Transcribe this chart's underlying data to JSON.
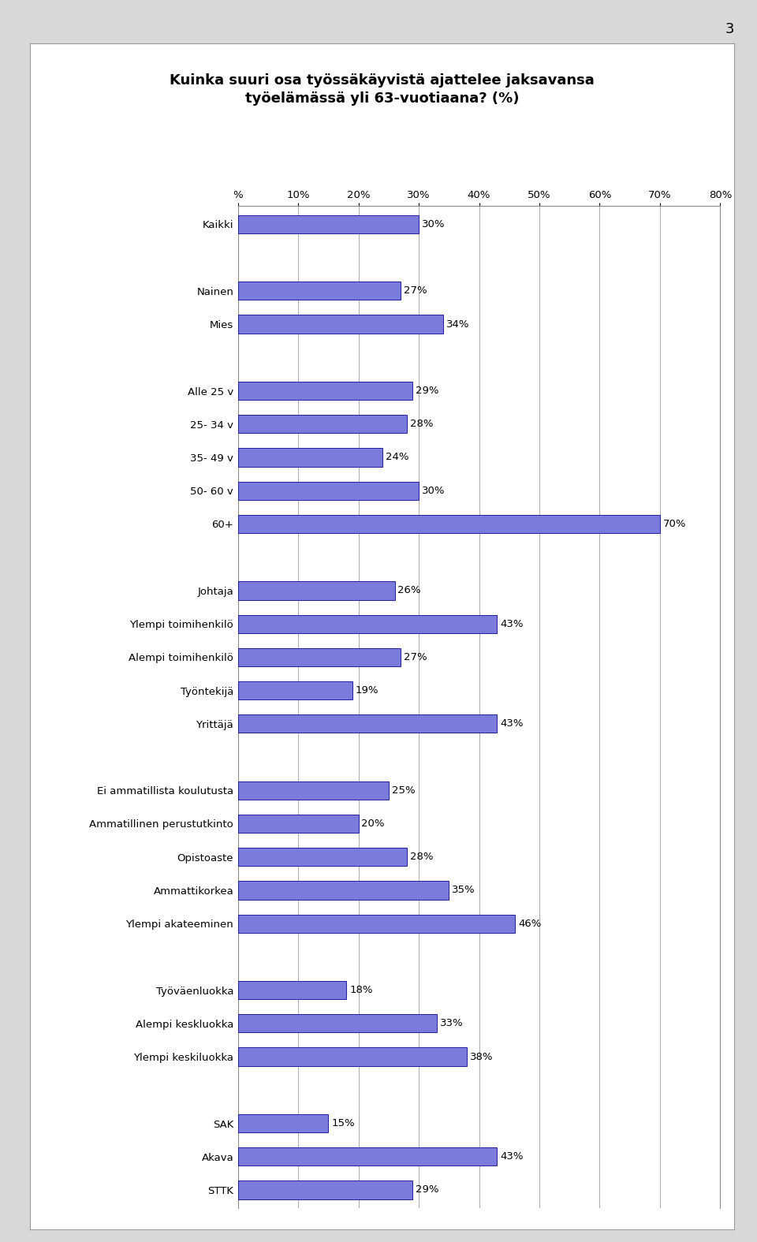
{
  "title_line1": "Kuinka suuri osa työssäkäyvistä ajattelee jaksavansa",
  "title_line2": "työelämässä yli 63-vuotiaana? (%)",
  "page_number": "3",
  "categories": [
    "Kaikki",
    "",
    "Nainen",
    "Mies",
    "",
    "Alle 25 v",
    "25- 34 v",
    "35- 49 v",
    "50- 60 v",
    "60+",
    "",
    "Johtaja",
    "Ylempi toimihenkilö",
    "Alempi toimihenkilö",
    "Työntekijä",
    "Yrittäjä",
    "",
    "Ei ammatillista koulutusta",
    "Ammatillinen perustutkinto",
    "Opistoaste",
    "Ammattikorkea",
    "Ylempi akateeminen",
    "",
    "Työväenluokka",
    "Alempi keskluokka",
    "Ylempi keskiluokka",
    "",
    "SAK",
    "Akava",
    "STTK"
  ],
  "values": [
    30,
    null,
    27,
    34,
    null,
    29,
    28,
    24,
    30,
    70,
    null,
    26,
    43,
    27,
    19,
    43,
    null,
    25,
    20,
    28,
    35,
    46,
    null,
    18,
    33,
    38,
    null,
    15,
    43,
    29
  ],
  "bar_color": "#7b7bdb",
  "bar_edge_color": "#2020a0",
  "background_color": "#ffffff",
  "grid_color": "#aaaaaa",
  "outer_bg": "#d8d8d8",
  "xlim": [
    0,
    80
  ],
  "xtick_labels": [
    "%",
    "10%",
    "20%",
    "30%",
    "40%",
    "50%",
    "60%",
    "70%",
    "80%"
  ],
  "xtick_values": [
    0,
    10,
    20,
    30,
    40,
    50,
    60,
    70,
    80
  ],
  "title_fontsize": 13,
  "label_fontsize": 9.5,
  "value_fontsize": 9.5
}
